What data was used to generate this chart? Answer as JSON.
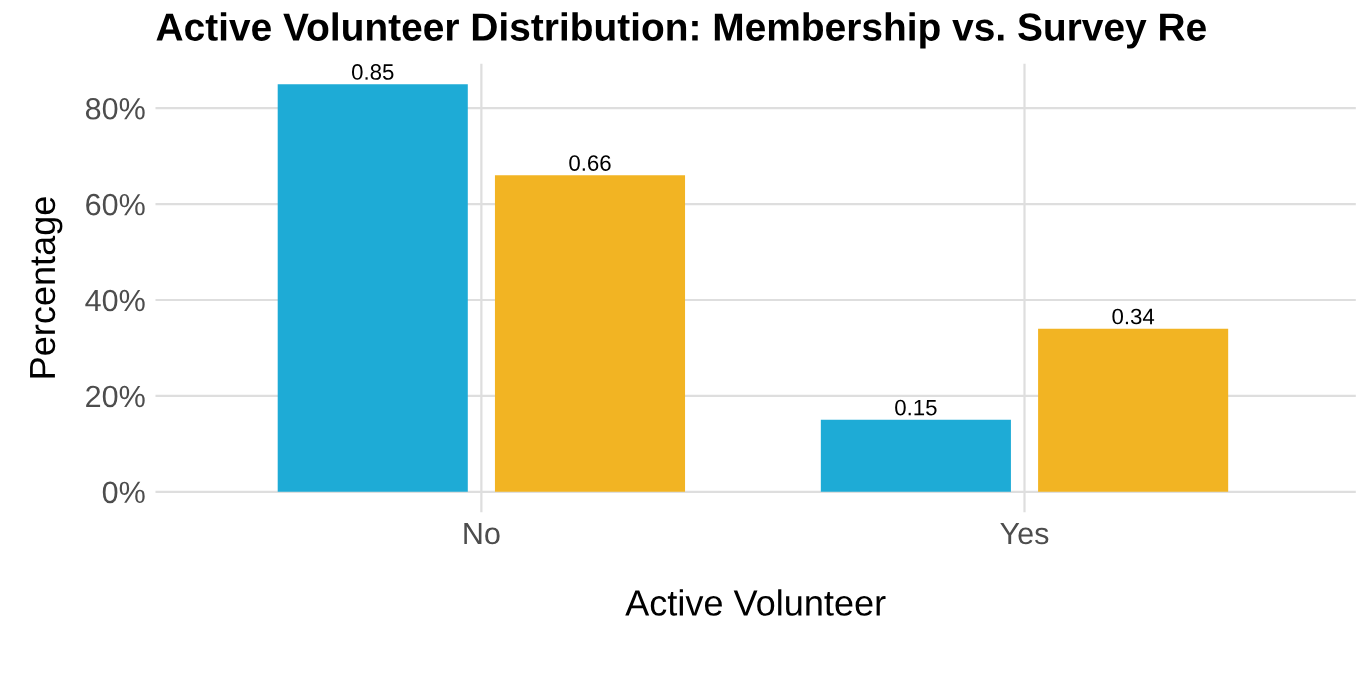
{
  "chart_data": {
    "type": "bar",
    "title": "Active Volunteer Distribution: Membership vs. Survey Re",
    "xlabel": "Active Volunteer",
    "ylabel": "Percentage",
    "categories": [
      "No",
      "Yes"
    ],
    "series": [
      {
        "color": "#1eabd6",
        "values": [
          0.85,
          0.15
        ]
      },
      {
        "color": "#f2b423",
        "values": [
          0.66,
          0.34
        ]
      }
    ],
    "ylim": [
      -0.0425,
      0.8925
    ],
    "yticks": [
      {
        "value": 0,
        "label": "0%"
      },
      {
        "value": 0.2,
        "label": "20%"
      },
      {
        "value": 0.4,
        "label": "40%"
      },
      {
        "value": 0.6,
        "label": "60%"
      },
      {
        "value": 0.8,
        "label": "80%"
      }
    ],
    "grid": true,
    "data_labels": true
  }
}
